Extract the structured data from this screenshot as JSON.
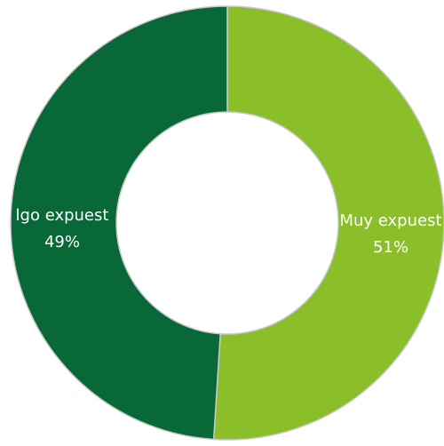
{
  "chart_data": {
    "type": "pie",
    "variant": "donut",
    "categories": [
      "Muy expuesto",
      "Algo expuesto"
    ],
    "values": [
      51,
      49
    ],
    "labels": [
      {
        "name": "Muy expuest",
        "percent": "51%"
      },
      {
        "name": "lgo expuest",
        "percent": "49%"
      }
    ],
    "colors": [
      "#8abf2a",
      "#086837"
    ],
    "slice_border_color": "#c8c8c8",
    "legend": "none"
  }
}
